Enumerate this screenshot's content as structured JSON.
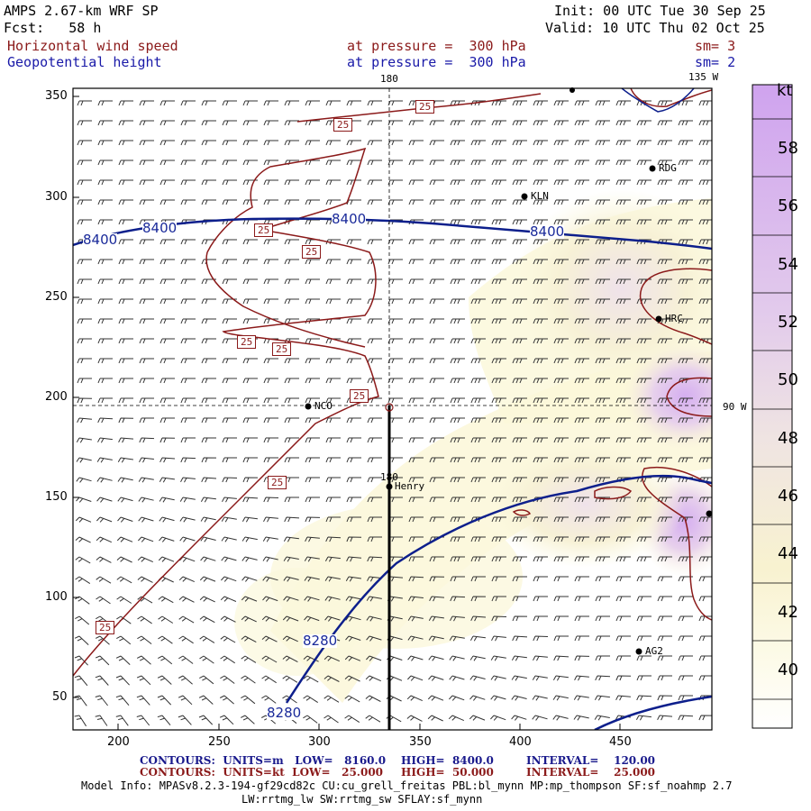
{
  "header": {
    "model": "AMPS 2.67-km WRF SP",
    "init": "Init: 00 UTC Tue 30 Sep 25",
    "forecast": "Fcst:   58 h",
    "valid": "Valid: 10 UTC Thu 02 Oct 25",
    "field1_name": "Horizontal wind speed",
    "field1_level": "at pressure =  300 hPa",
    "field1_sm": "sm= 3",
    "field2_name": "Geopotential height",
    "field2_level": "at pressure =  300 hPa",
    "field2_sm": "sm= 2"
  },
  "map": {
    "meridian_top": "180",
    "meridian_135": "135 W",
    "meridian_90": "90 W",
    "meridian_180_inner": "180",
    "x_ticks": [
      "200",
      "250",
      "300",
      "350",
      "400",
      "450"
    ],
    "y_ticks": [
      "350",
      "300",
      "250",
      "200",
      "150",
      "100",
      "50"
    ],
    "stations": [
      {
        "name": "RDG"
      },
      {
        "name": "KLN"
      },
      {
        "name": "HRC"
      },
      {
        "name": "NCO"
      },
      {
        "name": "Henry"
      },
      {
        "name": "AG2"
      }
    ],
    "height_labels": [
      "8400",
      "8400",
      "8400",
      "8400",
      "8280",
      "8280"
    ],
    "speed_labels": [
      "25",
      "25",
      "25",
      "25",
      "25",
      "25",
      "25",
      "25",
      "25"
    ],
    "colors": {
      "height_contour": "#0d1f8c",
      "speed_contour": "#8b1a1a",
      "cursor": "#000000"
    }
  },
  "colorbar": {
    "unit": "kt",
    "labels": [
      "58",
      "56",
      "54",
      "52",
      "50",
      "48",
      "46",
      "44",
      "42",
      "40"
    ],
    "colors": [
      "#cfa3ee",
      "#d4afee",
      "#dab9ef",
      "#dfc3ee",
      "#e5cfeb",
      "#ebdde8",
      "#f1e7e0",
      "#f6efd6",
      "#f9f3cf",
      "#fbf8cc",
      "#ffffff"
    ]
  },
  "footer": {
    "line1_label": "CONTOURS:  UNITS=m   LOW=   8160.0",
    "line1_high": "HIGH=  8400.0",
    "line1_interval": "INTERVAL=    120.00",
    "line2_label": "CONTOURS:  UNITS=kt  LOW=   25.000",
    "line2_high": "HIGH=  50.000",
    "line2_interval": "INTERVAL=    25.000",
    "model_info": "Model Info: MPASv8.2.3-194-gf29cd82c CU:cu_grell_freitas PBL:bl_mynn MP:mp_thompson SF:sf_noahmp 2.7",
    "model_info2": "LW:rrtmg_lw SW:rrtmg_sw SFLAY:sf_mynn"
  }
}
